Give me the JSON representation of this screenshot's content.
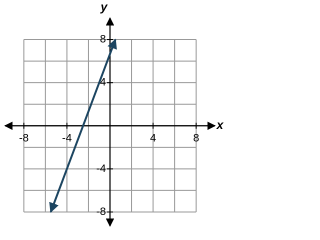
{
  "chart_data": {
    "type": "line",
    "x_label": "x",
    "y_label": "y",
    "xlim": [
      -9.75,
      9.75
    ],
    "ylim": [
      -9.3,
      10
    ],
    "xticks": [
      -8,
      -4,
      4,
      8
    ],
    "yticks": [
      -8,
      -4,
      4,
      8
    ],
    "xgrid": [
      -8,
      -6,
      -4,
      -2,
      0,
      2,
      4,
      6,
      8
    ],
    "ygrid": [
      -8,
      -6,
      -4,
      -2,
      0,
      2,
      4,
      6,
      8
    ],
    "series": [
      {
        "color": "#1c4561",
        "x": [
          -5.5,
          0.5
        ],
        "values": [
          -8,
          8
        ]
      }
    ]
  }
}
